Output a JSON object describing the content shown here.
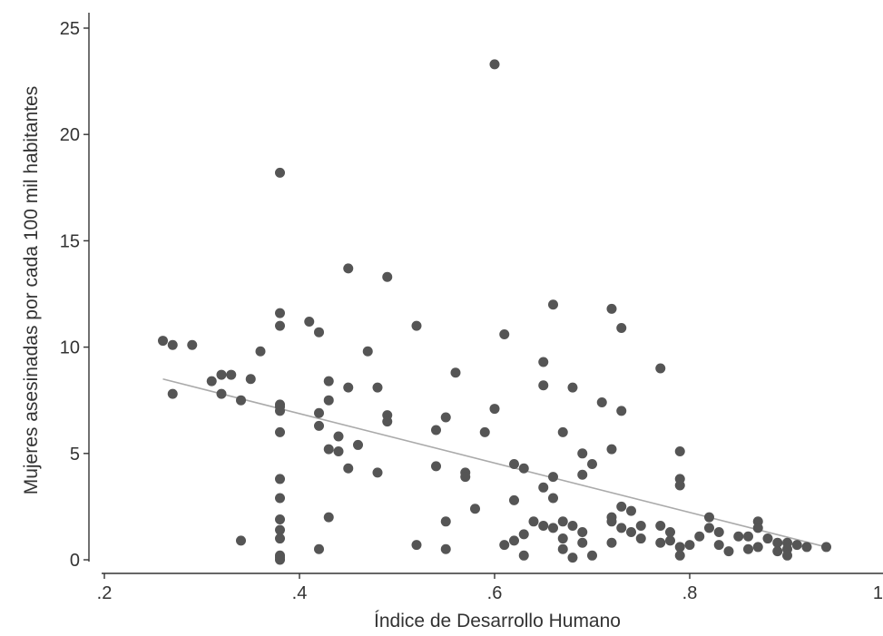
{
  "colors": {
    "point": "#555555",
    "trend": "#aaaaaa",
    "axis": "#333333"
  },
  "chart_data": {
    "type": "scatter",
    "title": "",
    "xlabel": "Índice de Desarrollo Humano",
    "ylabel": "Mujeres asesinadas por cada 100 mil habitantes",
    "xlim": [
      0.2,
      1.0
    ],
    "ylim": [
      0,
      25
    ],
    "xticks": [
      0.2,
      0.4,
      0.6,
      0.8,
      1.0
    ],
    "xtick_labels": [
      ".2",
      ".4",
      ".6",
      ".8",
      "1"
    ],
    "yticks": [
      0,
      5,
      10,
      15,
      20,
      25
    ],
    "ytick_labels": [
      "0",
      "5",
      "10",
      "15",
      "20",
      "25"
    ],
    "grid": false,
    "series": [
      {
        "kind": "points",
        "x": [
          0.26,
          0.27,
          0.27,
          0.29,
          0.31,
          0.32,
          0.32,
          0.33,
          0.34,
          0.34,
          0.35,
          0.36,
          0.38,
          0.38,
          0.38,
          0.38,
          0.38,
          0.38,
          0.38,
          0.38,
          0.38,
          0.38,
          0.38,
          0.38,
          0.38,
          0.38,
          0.38,
          0.41,
          0.42,
          0.42,
          0.42,
          0.42,
          0.43,
          0.43,
          0.43,
          0.43,
          0.44,
          0.44,
          0.45,
          0.45,
          0.45,
          0.46,
          0.47,
          0.48,
          0.48,
          0.49,
          0.49,
          0.49,
          0.52,
          0.52,
          0.54,
          0.54,
          0.55,
          0.55,
          0.55,
          0.56,
          0.57,
          0.57,
          0.58,
          0.59,
          0.6,
          0.6,
          0.61,
          0.61,
          0.62,
          0.62,
          0.62,
          0.63,
          0.63,
          0.63,
          0.64,
          0.65,
          0.65,
          0.65,
          0.65,
          0.66,
          0.66,
          0.66,
          0.66,
          0.67,
          0.67,
          0.67,
          0.67,
          0.68,
          0.68,
          0.68,
          0.69,
          0.69,
          0.69,
          0.69,
          0.7,
          0.7,
          0.71,
          0.72,
          0.72,
          0.72,
          0.72,
          0.72,
          0.73,
          0.73,
          0.73,
          0.73,
          0.74,
          0.74,
          0.75,
          0.75,
          0.77,
          0.77,
          0.77,
          0.78,
          0.78,
          0.79,
          0.79,
          0.79,
          0.79,
          0.79,
          0.8,
          0.81,
          0.82,
          0.82,
          0.83,
          0.83,
          0.84,
          0.85,
          0.86,
          0.86,
          0.87,
          0.87,
          0.87,
          0.88,
          0.89,
          0.89,
          0.9,
          0.9,
          0.9,
          0.91,
          0.92,
          0.94
        ],
        "y": [
          10.3,
          10.1,
          7.8,
          10.1,
          8.4,
          8.7,
          7.8,
          8.7,
          7.5,
          0.9,
          8.5,
          9.8,
          18.2,
          11.6,
          11.0,
          7.3,
          7.0,
          6.0,
          3.8,
          2.9,
          1.9,
          1.4,
          1.0,
          0.2,
          0.0,
          0.1,
          7.2,
          11.2,
          10.7,
          6.9,
          6.3,
          0.5,
          8.4,
          7.5,
          5.2,
          2.0,
          5.8,
          5.1,
          13.7,
          8.1,
          4.3,
          5.4,
          9.8,
          8.1,
          4.1,
          13.3,
          6.8,
          6.5,
          11.0,
          0.7,
          6.1,
          4.4,
          6.7,
          1.8,
          0.5,
          8.8,
          4.1,
          3.9,
          2.4,
          6.0,
          23.3,
          7.1,
          10.6,
          0.7,
          4.5,
          2.8,
          0.9,
          4.3,
          1.2,
          0.2,
          1.8,
          9.3,
          8.2,
          3.4,
          1.6,
          12.0,
          3.9,
          2.9,
          1.5,
          6.0,
          1.8,
          1.0,
          0.5,
          8.1,
          1.6,
          0.1,
          5.0,
          4.0,
          1.3,
          0.8,
          4.5,
          0.2,
          7.4,
          11.8,
          5.2,
          2.0,
          1.8,
          0.8,
          10.9,
          7.0,
          2.5,
          1.5,
          2.3,
          1.3,
          1.6,
          1.0,
          9.0,
          1.6,
          0.8,
          1.3,
          0.9,
          5.1,
          3.8,
          3.5,
          0.6,
          0.2,
          0.7,
          1.1,
          2.0,
          1.5,
          1.3,
          0.7,
          0.4,
          1.1,
          1.1,
          0.5,
          1.8,
          1.5,
          0.6,
          1.0,
          0.8,
          0.4,
          0.8,
          0.5,
          0.2,
          0.7,
          0.6,
          0.6
        ]
      },
      {
        "kind": "trend-line",
        "x": [
          0.26,
          0.94
        ],
        "y": [
          8.5,
          0.6
        ]
      }
    ]
  }
}
